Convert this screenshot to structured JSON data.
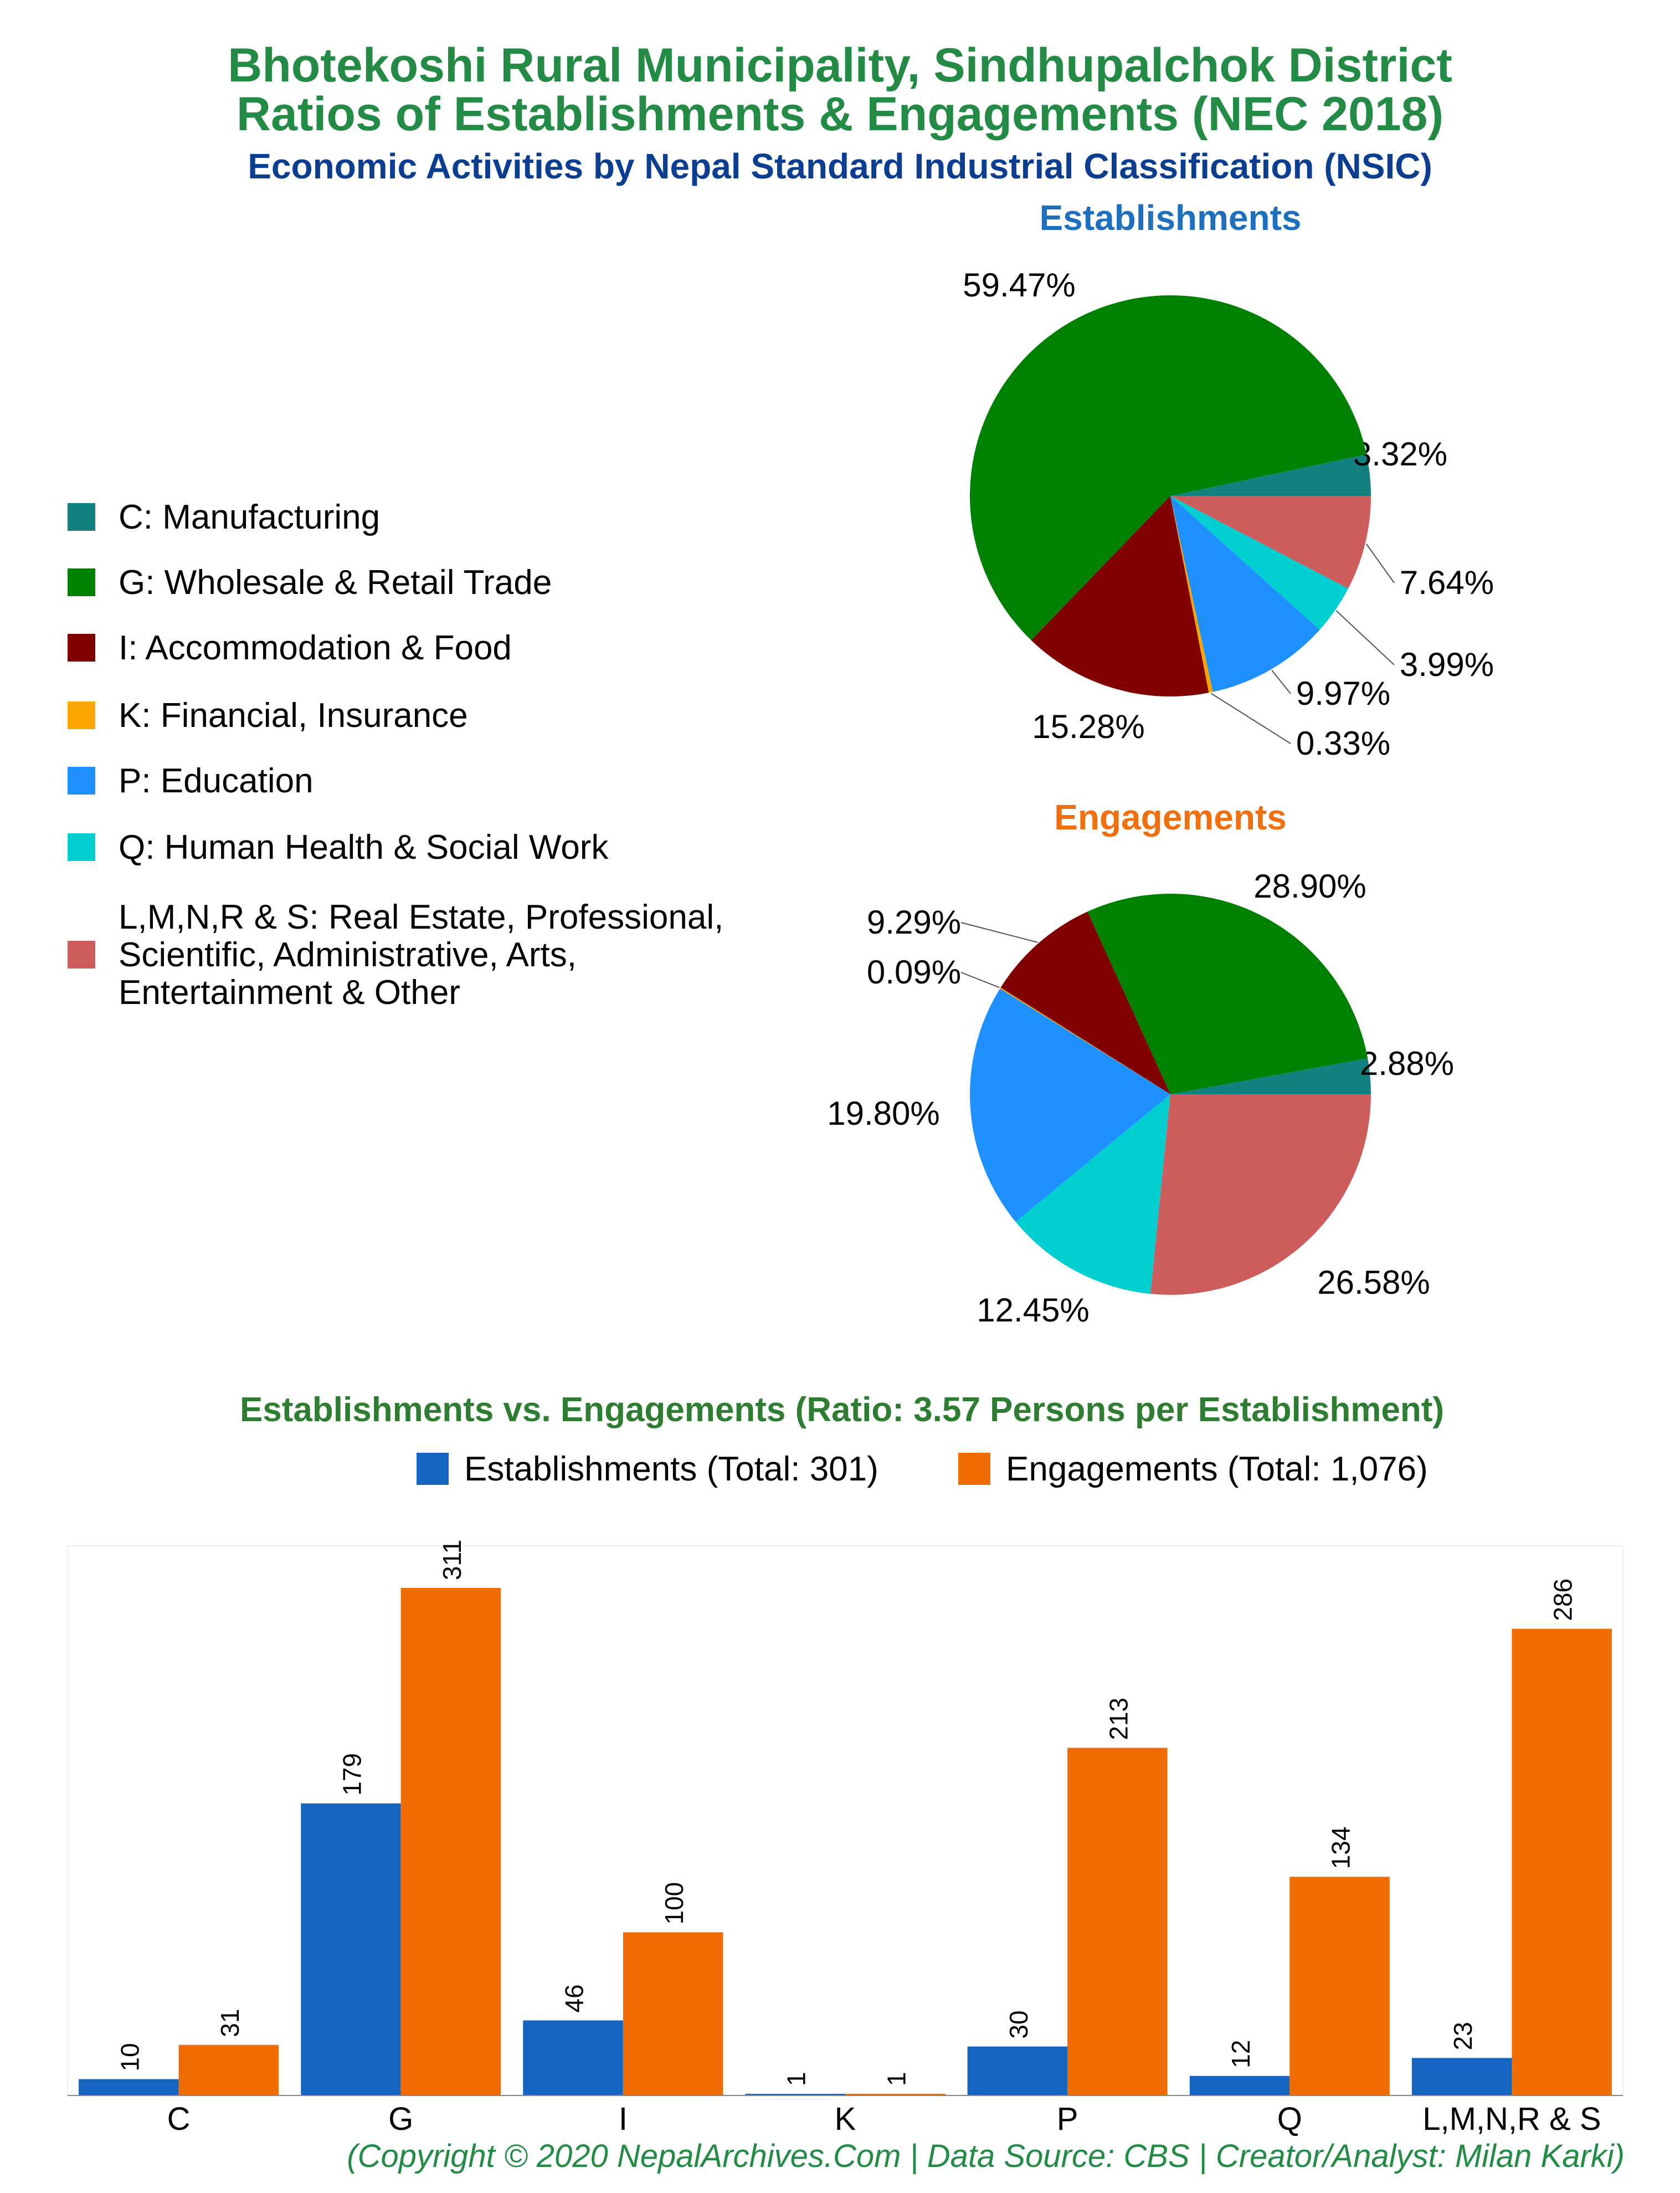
{
  "header": {
    "title_line1": "Bhotekoshi Rural Municipality, Sindhupalchok District",
    "title_line2": "Ratios of Establishments & Engagements (NEC 2018)",
    "subtitle": "Economic Activities by Nepal Standard Industrial Classification (NSIC)"
  },
  "legend": {
    "items": [
      {
        "label_lines": [
          "C: Manufacturing"
        ],
        "color": "#138080"
      },
      {
        "label_lines": [
          "G: Wholesale & Retail Trade"
        ],
        "color": "#008000"
      },
      {
        "label_lines": [
          "I: Accommodation & Food"
        ],
        "color": "#800000"
      },
      {
        "label_lines": [
          "K: Financial, Insurance"
        ],
        "color": "#ffa500"
      },
      {
        "label_lines": [
          "P: Education"
        ],
        "color": "#1e90ff"
      },
      {
        "label_lines": [
          "Q: Human Health & Social Work"
        ],
        "color": "#00ced1"
      },
      {
        "label_lines": [
          "L,M,N,R & S: Real Estate, Professional,",
          "Scientific, Administrative, Arts,",
          "Entertainment & Other"
        ],
        "color": "#cd5c5c"
      }
    ]
  },
  "chart_data": [
    {
      "type": "pie",
      "title": "Establishments",
      "title_color": "#1f6fbf",
      "categories": [
        "C",
        "G",
        "I",
        "K",
        "P",
        "Q",
        "L,M,N,R & S"
      ],
      "values": [
        3.32,
        59.47,
        15.28,
        0.33,
        9.97,
        3.99,
        7.64
      ],
      "labels": [
        "3.32%",
        "59.47%",
        "15.28%",
        "0.33%",
        "9.97%",
        "3.99%",
        "7.64%"
      ],
      "colors": [
        "#138080",
        "#008000",
        "#800000",
        "#ffa500",
        "#1e90ff",
        "#00ced1",
        "#cd5c5c"
      ]
    },
    {
      "type": "pie",
      "title": "Engagements",
      "title_color": "#f07010",
      "categories": [
        "C",
        "G",
        "I",
        "K",
        "P",
        "Q",
        "L,M,N,R & S"
      ],
      "values": [
        2.88,
        28.9,
        9.29,
        0.09,
        19.8,
        12.45,
        26.58
      ],
      "labels": [
        "2.88%",
        "28.90%",
        "9.29%",
        "0.09%",
        "19.80%",
        "12.45%",
        "26.58%"
      ],
      "colors": [
        "#138080",
        "#008000",
        "#800000",
        "#ffa500",
        "#1e90ff",
        "#00ced1",
        "#cd5c5c"
      ]
    },
    {
      "type": "bar",
      "title": "Establishments vs. Engagements (Ratio: 3.57 Persons per Establishment)",
      "title_color": "#2e7d32",
      "categories": [
        "C",
        "G",
        "I",
        "K",
        "P",
        "Q",
        "L,M,N,R & S"
      ],
      "series": [
        {
          "name": "Establishments (Total: 301)",
          "values": [
            10,
            179,
            46,
            1,
            30,
            12,
            23
          ],
          "color": "#1565c0"
        },
        {
          "name": "Engagements (Total: 1,076)",
          "values": [
            31,
            311,
            100,
            1,
            213,
            134,
            286
          ],
          "color": "#ef6c00"
        }
      ],
      "ylim": [
        0,
        330
      ],
      "legend_placement": "top"
    }
  ],
  "footer": "(Copyright © 2020 NepalArchives.Com | Data Source: CBS | Creator/Analyst: Milan Karki)"
}
